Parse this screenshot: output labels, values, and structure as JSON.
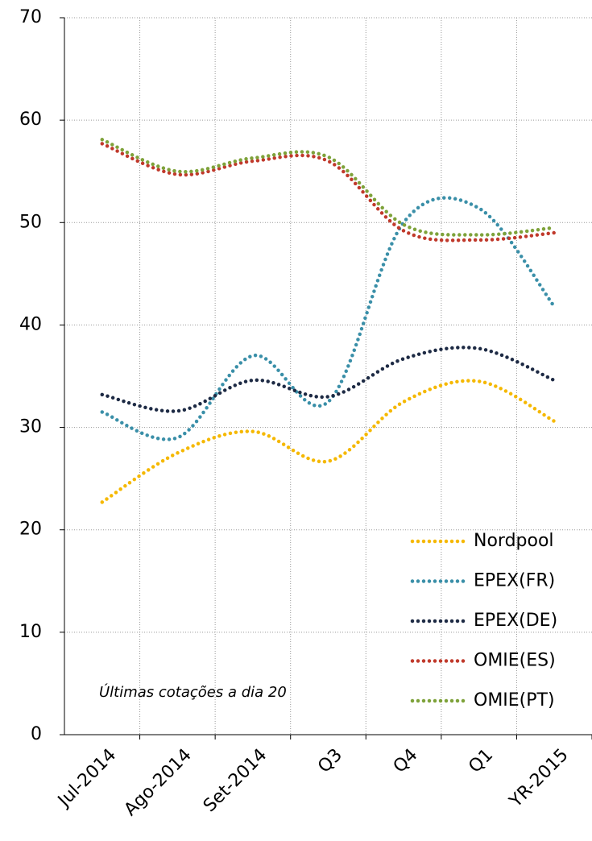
{
  "chart_data": {
    "type": "line",
    "categories": [
      "Jul-2014",
      "Ago-2014",
      "Set-2014",
      "Q3",
      "Q4",
      "Q1",
      "YR-2015"
    ],
    "series": [
      {
        "name": "Nordpool",
        "color": "#f5b800",
        "values": [
          22.7,
          27.5,
          29.6,
          26.7,
          32.5,
          34.5,
          30.6
        ]
      },
      {
        "name": "EPEX(FR)",
        "color": "#3a8fa8",
        "values": [
          31.5,
          29.0,
          37.0,
          32.5,
          50.0,
          51.4,
          41.8
        ]
      },
      {
        "name": "EPEX(DE)",
        "color": "#1d2a44",
        "values": [
          33.2,
          31.6,
          34.6,
          33.0,
          36.7,
          37.7,
          34.6
        ]
      },
      {
        "name": "OMIE(ES)",
        "color": "#c0392b",
        "values": [
          57.7,
          54.7,
          56.0,
          56.0,
          49.2,
          48.3,
          49.0
        ]
      },
      {
        "name": "OMIE(PT)",
        "color": "#7ea23a",
        "values": [
          58.1,
          55.0,
          56.3,
          56.4,
          49.8,
          48.8,
          49.5
        ]
      }
    ],
    "annotation": "Últimas cotações a dia 20",
    "ylim": [
      0,
      70
    ],
    "yticks": [
      0,
      10,
      20,
      30,
      40,
      50,
      60,
      70
    ],
    "grid": true,
    "legend": "lower right"
  }
}
